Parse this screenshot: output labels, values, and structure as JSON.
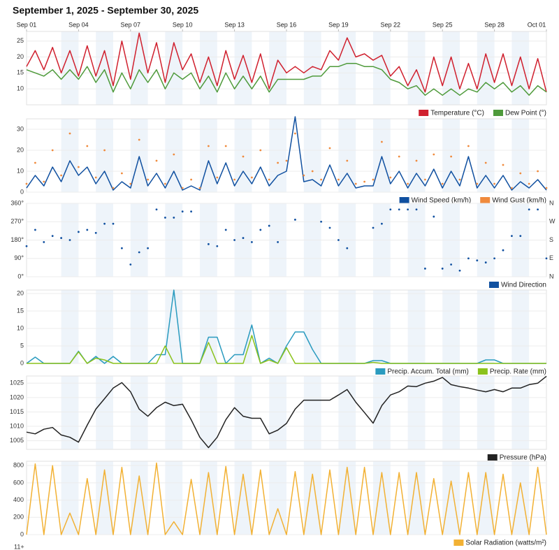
{
  "title": "September 1, 2025 - September 30, 2025",
  "cut_off_text": "11+",
  "chart_data": [
    {
      "type": "line",
      "x": [
        0,
        0.5,
        1,
        1.5,
        2,
        2.5,
        3,
        3.5,
        4,
        4.5,
        5,
        5.5,
        6,
        6.5,
        7,
        7.5,
        8,
        8.5,
        9,
        9.5,
        10,
        10.5,
        11,
        11.5,
        12,
        12.5,
        13,
        13.5,
        14,
        14.5,
        15,
        15.5,
        16,
        16.5,
        17,
        17.5,
        18,
        18.5,
        19,
        19.5,
        20,
        20.5,
        21,
        21.5,
        22,
        22.5,
        23,
        23.5,
        24,
        24.5,
        25,
        25.5,
        26,
        26.5,
        27,
        27.5,
        28,
        28.5,
        29,
        29.5,
        30
      ],
      "xlim": [
        0,
        30
      ],
      "xticks": [
        {
          "value": 0,
          "label": "Sep 01"
        },
        {
          "value": 3,
          "label": "Sep 04"
        },
        {
          "value": 6,
          "label": "Sep 07"
        },
        {
          "value": 9,
          "label": "Sep 10"
        },
        {
          "value": 12,
          "label": "Sep 13"
        },
        {
          "value": 15,
          "label": "Sep 16"
        },
        {
          "value": 18,
          "label": "Sep 19"
        },
        {
          "value": 21,
          "label": "Sep 22"
        },
        {
          "value": 24,
          "label": "Sep 25"
        },
        {
          "value": 27,
          "label": "Sep 28"
        },
        {
          "value": 30,
          "label": "Oct 01"
        }
      ],
      "ylim": [
        5,
        28
      ],
      "yticks": [
        10,
        15,
        20,
        25
      ],
      "grid": true,
      "series": [
        {
          "name": "Temperature (°C)",
          "color": "#d0202e",
          "values": [
            17,
            22,
            16,
            23,
            15,
            22,
            14,
            23.5,
            14,
            22,
            11,
            25,
            13,
            27.5,
            15,
            24.5,
            12,
            24.5,
            16,
            21,
            12,
            20,
            11,
            22,
            13,
            20.5,
            12,
            21,
            10,
            19,
            15,
            17,
            15,
            17,
            16,
            22,
            19,
            26,
            20,
            21,
            19,
            20.5,
            14,
            17,
            11,
            16,
            9,
            20,
            11,
            20,
            10,
            18,
            10,
            21,
            12,
            21,
            11,
            20,
            10,
            19.5,
            9
          ]
        },
        {
          "name": "Dew Point (°)",
          "color": "#4e9a3a",
          "values": [
            16,
            15,
            14,
            16,
            13,
            16,
            13,
            17,
            12,
            16,
            9,
            15,
            10,
            16,
            12,
            16,
            10,
            15,
            13,
            15,
            10,
            14,
            9,
            15,
            10,
            14,
            10,
            14,
            9,
            13,
            13,
            13,
            13,
            14,
            14,
            17,
            17,
            18,
            18,
            17,
            17,
            16,
            13,
            12,
            10,
            11,
            8,
            10,
            8,
            10,
            8,
            10,
            9,
            12,
            10,
            12,
            9,
            11,
            8,
            11,
            9
          ]
        }
      ]
    },
    {
      "type": "line",
      "x": [
        0,
        0.5,
        1,
        1.5,
        2,
        2.5,
        3,
        3.5,
        4,
        4.5,
        5,
        5.5,
        6,
        6.5,
        7,
        7.5,
        8,
        8.5,
        9,
        9.5,
        10,
        10.5,
        11,
        11.5,
        12,
        12.5,
        13,
        13.5,
        14,
        14.5,
        15,
        15.5,
        16,
        16.5,
        17,
        17.5,
        18,
        18.5,
        19,
        19.5,
        20,
        20.5,
        21,
        21.5,
        22,
        22.5,
        23,
        23.5,
        24,
        24.5,
        25,
        25.5,
        26,
        26.5,
        27,
        27.5,
        28,
        28.5,
        29,
        29.5,
        30
      ],
      "xlim": [
        0,
        30
      ],
      "ylim": [
        0,
        35
      ],
      "yticks": [
        0,
        10,
        20,
        30
      ],
      "grid": true,
      "series": [
        {
          "name": "Wind Speed (km/h)",
          "color": "#1050a0",
          "values": [
            2,
            8,
            3,
            12,
            5,
            15,
            8,
            12,
            4,
            10,
            1,
            5,
            2,
            17,
            3,
            9,
            2,
            10,
            1,
            3,
            1,
            15,
            4,
            14,
            3,
            10,
            4,
            12,
            3,
            8,
            10,
            36,
            5,
            6,
            3,
            13,
            3,
            9,
            2,
            3,
            3,
            17,
            4,
            10,
            2,
            9,
            3,
            11,
            2,
            10,
            3,
            17,
            2,
            8,
            2,
            8,
            1,
            5,
            2,
            6,
            1
          ]
        },
        {
          "name": "Wind Gust (km/h)",
          "color": "#f08a3c",
          "mode": "markers",
          "values": [
            4,
            14,
            5,
            20,
            8,
            28,
            12,
            22,
            7,
            20,
            2,
            9,
            4,
            25,
            6,
            15,
            4,
            18,
            2,
            6,
            2,
            22,
            7,
            22,
            6,
            17,
            7,
            20,
            6,
            14,
            15,
            28,
            8,
            10,
            6,
            21,
            6,
            15,
            4,
            5,
            6,
            24,
            7,
            17,
            4,
            15,
            6,
            18,
            4,
            17,
            6,
            22,
            4,
            14,
            4,
            13,
            2,
            9,
            4,
            10,
            2
          ]
        }
      ]
    },
    {
      "type": "scatter",
      "x": [
        0,
        0.5,
        1,
        1.5,
        2,
        2.5,
        3,
        3.5,
        4,
        4.5,
        5,
        5.5,
        6,
        6.5,
        7,
        7.5,
        8,
        8.5,
        9,
        9.5,
        10,
        10.5,
        11,
        11.5,
        12,
        12.5,
        13,
        13.5,
        14,
        14.5,
        15,
        15.5,
        16,
        16.5,
        17,
        17.5,
        18,
        18.5,
        19,
        19.5,
        20,
        20.5,
        21,
        21.5,
        22,
        22.5,
        23,
        23.5,
        24,
        24.5,
        25,
        25.5,
        26,
        26.5,
        27,
        27.5,
        28,
        28.5,
        29,
        29.5,
        30
      ],
      "xlim": [
        0,
        30
      ],
      "ylim": [
        0,
        360
      ],
      "yticks": [
        {
          "value": 0,
          "label": "0°"
        },
        {
          "value": 90,
          "label": "90°"
        },
        {
          "value": 180,
          "label": "180°"
        },
        {
          "value": 270,
          "label": "270°"
        },
        {
          "value": 360,
          "label": "360°"
        }
      ],
      "y2lim": [
        0,
        360
      ],
      "y2ticks": [
        {
          "value": 0,
          "label": "N"
        },
        {
          "value": 90,
          "label": "E"
        },
        {
          "value": 180,
          "label": "S"
        },
        {
          "value": 270,
          "label": "W"
        },
        {
          "value": 360,
          "label": "N"
        }
      ],
      "grid": true,
      "series": [
        {
          "name": "Wind Direction",
          "color": "#1050a0",
          "values": [
            150,
            230,
            170,
            200,
            190,
            180,
            220,
            230,
            215,
            260,
            260,
            140,
            60,
            120,
            140,
            330,
            290,
            290,
            320,
            320,
            null,
            160,
            150,
            230,
            180,
            190,
            170,
            230,
            250,
            170,
            null,
            280,
            null,
            null,
            270,
            240,
            180,
            140,
            null,
            null,
            240,
            260,
            330,
            330,
            330,
            330,
            40,
            295,
            40,
            60,
            30,
            90,
            80,
            70,
            90,
            130,
            200,
            200,
            330,
            330,
            90
          ]
        }
      ]
    },
    {
      "type": "line",
      "x": [
        0,
        0.5,
        1,
        1.5,
        2,
        2.5,
        3,
        3.5,
        4,
        4.5,
        5,
        5.5,
        6,
        6.5,
        7,
        7.5,
        8,
        8.5,
        9,
        9.5,
        10,
        10.5,
        11,
        11.5,
        12,
        12.5,
        13,
        13.5,
        14,
        14.5,
        15,
        15.5,
        16,
        16.5,
        17,
        17.5,
        18,
        18.5,
        19,
        19.5,
        20,
        20.5,
        21,
        21.5,
        22,
        22.5,
        23,
        23.5,
        24,
        24.5,
        25,
        25.5,
        26,
        26.5,
        27,
        27.5,
        28,
        28.5,
        29,
        29.5,
        30
      ],
      "xlim": [
        0,
        30
      ],
      "ylim": [
        0,
        21
      ],
      "yticks": [
        0,
        5,
        10,
        15,
        20
      ],
      "grid": true,
      "series": [
        {
          "name": "Precip. Accum. Total (mm)",
          "color": "#2a9bbf",
          "values": [
            0,
            1.8,
            0,
            0,
            0,
            0,
            3.5,
            0,
            2,
            0,
            2,
            0,
            0,
            0,
            0,
            2.5,
            2.5,
            21,
            0,
            0,
            0,
            7.5,
            7.5,
            0,
            2.5,
            2.5,
            11,
            0,
            1.5,
            0,
            5,
            9,
            9,
            4,
            0,
            0,
            0,
            0,
            0,
            0,
            0.8,
            0.8,
            0,
            0,
            0,
            0,
            0,
            0,
            0,
            0,
            0,
            0,
            0,
            1,
            1,
            0,
            0,
            0,
            0,
            0,
            0
          ]
        },
        {
          "name": "Precip. Rate (mm)",
          "color": "#8bc21c",
          "values": [
            0,
            0,
            0,
            0,
            0,
            0,
            3.3,
            0,
            1.5,
            1,
            0,
            0,
            0,
            0,
            0,
            0,
            5,
            0,
            0,
            0,
            0,
            6,
            0,
            0,
            0,
            0,
            8,
            0,
            1,
            0,
            4.5,
            0,
            0,
            0,
            0,
            0,
            0,
            0,
            0,
            0,
            0.3,
            0,
            0,
            0,
            0,
            0,
            0,
            0,
            0,
            0,
            0,
            0,
            0,
            0,
            0,
            0,
            0,
            0,
            0,
            0,
            0
          ]
        }
      ]
    },
    {
      "type": "line",
      "x": [
        0,
        0.5,
        1,
        1.5,
        2,
        2.5,
        3,
        3.5,
        4,
        4.5,
        5,
        5.5,
        6,
        6.5,
        7,
        7.5,
        8,
        8.5,
        9,
        9.5,
        10,
        10.5,
        11,
        11.5,
        12,
        12.5,
        13,
        13.5,
        14,
        14.5,
        15,
        15.5,
        16,
        16.5,
        17,
        17.5,
        18,
        18.5,
        19,
        19.5,
        20,
        20.5,
        21,
        21.5,
        22,
        22.5,
        23,
        23.5,
        24,
        24.5,
        25,
        25.5,
        26,
        26.5,
        27,
        27.5,
        28,
        28.5,
        29,
        29.5,
        30
      ],
      "xlim": [
        0,
        30
      ],
      "ylim": [
        1002,
        1027.5
      ],
      "yticks": [
        1005,
        1010,
        1015,
        1020,
        1025
      ],
      "grid": true,
      "series": [
        {
          "name": "Pressure (hPa)",
          "color": "#222222",
          "values": [
            1008,
            1007.4,
            1009,
            1009.6,
            1007,
            1006.2,
            1004.5,
            1010.4,
            1016,
            1019.6,
            1023.3,
            1025.2,
            1022,
            1016,
            1013.5,
            1016.5,
            1018.4,
            1017.2,
            1017.7,
            1012.3,
            1006.2,
            1002.6,
            1006.2,
            1012.3,
            1016.5,
            1013.5,
            1012.8,
            1012.8,
            1007.4,
            1008.7,
            1011,
            1016,
            1019.1,
            1019.1,
            1019.1,
            1019.1,
            1020.9,
            1022.8,
            1018.4,
            1014.8,
            1011.1,
            1017.2,
            1020.9,
            1022,
            1024,
            1023.8,
            1025,
            1025.7,
            1027,
            1024.5,
            1023.8,
            1023.3,
            1022.6,
            1022,
            1022.8,
            1022,
            1023.3,
            1023.3,
            1024.5,
            1025,
            1027.4
          ]
        }
      ]
    },
    {
      "type": "line",
      "x": [
        0,
        0.5,
        1,
        1.5,
        2,
        2.5,
        3,
        3.5,
        4,
        4.5,
        5,
        5.5,
        6,
        6.5,
        7,
        7.5,
        8,
        8.5,
        9,
        9.5,
        10,
        10.5,
        11,
        11.5,
        12,
        12.5,
        13,
        13.5,
        14,
        14.5,
        15,
        15.5,
        16,
        16.5,
        17,
        17.5,
        18,
        18.5,
        19,
        19.5,
        20,
        20.5,
        21,
        21.5,
        22,
        22.5,
        23,
        23.5,
        24,
        24.5,
        25,
        25.5,
        26,
        26.5,
        27,
        27.5,
        28,
        28.5,
        29,
        29.5,
        30
      ],
      "xlim": [
        0,
        30
      ],
      "ylim": [
        0,
        850
      ],
      "yticks": [
        0,
        200,
        400,
        600,
        800
      ],
      "grid": true,
      "series": [
        {
          "name": "Solar Radiation (watts/m²)",
          "color": "#f2b134",
          "values": [
            0,
            820,
            0,
            800,
            0,
            250,
            0,
            650,
            0,
            750,
            0,
            780,
            0,
            680,
            0,
            830,
            0,
            150,
            0,
            640,
            0,
            720,
            0,
            790,
            0,
            700,
            0,
            750,
            0,
            300,
            0,
            730,
            0,
            700,
            0,
            750,
            0,
            780,
            0,
            780,
            0,
            720,
            0,
            720,
            0,
            720,
            0,
            650,
            0,
            620,
            0,
            720,
            0,
            720,
            0,
            700,
            0,
            600,
            0,
            780,
            0
          ]
        }
      ]
    }
  ]
}
